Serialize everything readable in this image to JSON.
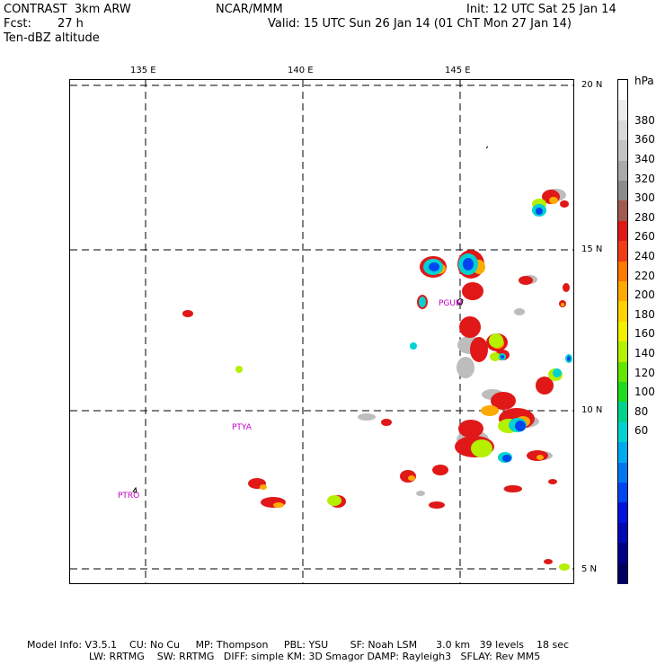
{
  "header": {
    "model": "CONTRAST  3km ARW",
    "forecast_label": "Fcst:",
    "forecast_value": "27 h",
    "field": "Ten-dBZ altitude",
    "center": "NCAR/MMM",
    "init": "Init: 12 UTC Sat 25 Jan 14",
    "valid": "Valid: 15 UTC Sun 26 Jan 14 (01 ChT Mon 27 Jan 14)"
  },
  "map": {
    "lon_labels": [
      "135 E",
      "140 E",
      "145 E"
    ],
    "lat_labels": [
      "20 N",
      "15 N",
      "10 N",
      "5 N"
    ],
    "stations": [
      "PGUM",
      "PTYA",
      "PTRO"
    ]
  },
  "colorbar": {
    "unit": "hPa",
    "labels": [
      "380",
      "360",
      "340",
      "320",
      "300",
      "280",
      "260",
      "240",
      "220",
      "200",
      "180",
      "160",
      "140",
      "120",
      "100",
      "80",
      "60"
    ],
    "colors": [
      "#ffffff",
      "#ececec",
      "#d8d8d8",
      "#c4c4c4",
      "#aaaaaa",
      "#8c8c8c",
      "#a05a50",
      "#e01818",
      "#f03c14",
      "#ff7800",
      "#ffaa00",
      "#ffd200",
      "#f0f000",
      "#b4f000",
      "#64e600",
      "#1edc1e",
      "#00d28c",
      "#00d2d2",
      "#00aaf0",
      "#0078f0",
      "#0046f0",
      "#0014dc",
      "#000ab4",
      "#000087",
      "#000064"
    ]
  },
  "footer": {
    "line1": "Model Info: V3.5.1    CU: No Cu     MP: Thompson     PBL: YSU       SF: Noah LSM      3.0 km   39 levels    18 sec",
    "line2": "LW: RRTMG    SW: RRTMG   DIFF: simple KM: 3D Smagor DAMP: Rayleigh3   SFLAY: Rev MM5"
  }
}
